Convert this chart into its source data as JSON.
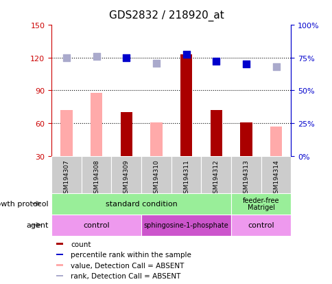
{
  "title": "GDS2832 / 218920_at",
  "samples": [
    "GSM194307",
    "GSM194308",
    "GSM194309",
    "GSM194310",
    "GSM194311",
    "GSM194312",
    "GSM194313",
    "GSM194314"
  ],
  "bar_values_pink": [
    72,
    88,
    70,
    61,
    123,
    72,
    61,
    57
  ],
  "bar_values_red": [
    0,
    0,
    70,
    0,
    123,
    72,
    61,
    0
  ],
  "bar_absent_pink": [
    true,
    true,
    false,
    true,
    false,
    false,
    false,
    true
  ],
  "dot_values": [
    120,
    121,
    120,
    115,
    123,
    117,
    114,
    112
  ],
  "dot_absent": [
    true,
    true,
    false,
    true,
    false,
    false,
    false,
    true
  ],
  "ylim_left": [
    30,
    150
  ],
  "ylim_right": [
    0,
    100
  ],
  "yticks_left": [
    30,
    60,
    90,
    120,
    150
  ],
  "yticks_right": [
    0,
    25,
    50,
    75,
    100
  ],
  "ytick_labels_right": [
    "0%",
    "25%",
    "50%",
    "75%",
    "100%"
  ],
  "color_dark_red": "#aa0000",
  "color_light_pink": "#ffaaaa",
  "color_dark_blue": "#0000cc",
  "color_light_blue": "#aaaacc",
  "color_axis_red": "#cc0000",
  "color_axis_blue": "#0000cc",
  "color_bg_gray": "#cccccc",
  "color_bg_green": "#99ee99",
  "color_bg_pink_light": "#ee99ee",
  "color_bg_pink_dark": "#cc55cc",
  "bar_width": 0.4,
  "dot_size": 55,
  "hlines": [
    60,
    90,
    120
  ],
  "legend_items": [
    {
      "color": "#aa0000",
      "label": "count"
    },
    {
      "color": "#0000cc",
      "label": "percentile rank within the sample"
    },
    {
      "color": "#ffaaaa",
      "label": "value, Detection Call = ABSENT"
    },
    {
      "color": "#aaaacc",
      "label": "rank, Detection Call = ABSENT"
    }
  ]
}
